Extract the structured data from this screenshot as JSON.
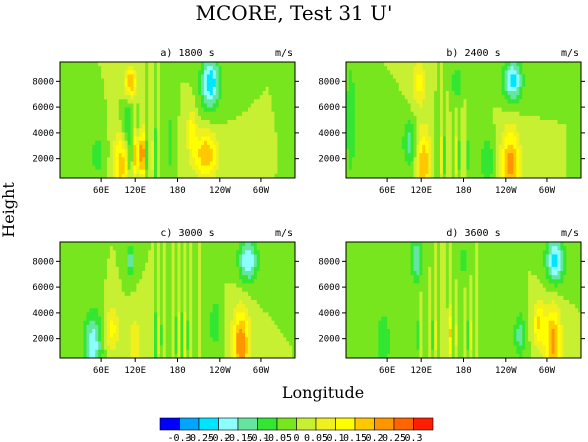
{
  "figure": {
    "title": "MCORE, Test 31 U'",
    "xlabel": "Longitude",
    "ylabel": "Height",
    "units": "m/s"
  },
  "chart_data": {
    "type": "heatmap",
    "x_ticks": [
      "60E",
      "120E",
      "180",
      "120W",
      "60W"
    ],
    "y_ticks": [
      2000,
      4000,
      6000,
      8000
    ],
    "ylim": [
      500,
      9500
    ],
    "panels": [
      {
        "title": "a) 1800 s",
        "units": "m/s"
      },
      {
        "title": "b) 2400 s",
        "units": "m/s"
      },
      {
        "title": "c) 3000 s",
        "units": "m/s"
      },
      {
        "title": "d) 3600 s",
        "units": "m/s"
      }
    ],
    "colorbar": {
      "labels": [
        "-0.3",
        "-0.25",
        "-0.2",
        "-0.15",
        "-0.1",
        "-0.05",
        "0",
        "0.05",
        "0.1",
        "0.15",
        "0.2",
        "0.25",
        "0.3"
      ],
      "colors": [
        "#0000ff",
        "#00a5ff",
        "#00e5ff",
        "#8cffff",
        "#64e6a0",
        "#32e632",
        "#78e61e",
        "#c8f032",
        "#f0f01e",
        "#ffff00",
        "#ffc800",
        "#ff9600",
        "#ff6400",
        "#ff1e00"
      ]
    }
  }
}
